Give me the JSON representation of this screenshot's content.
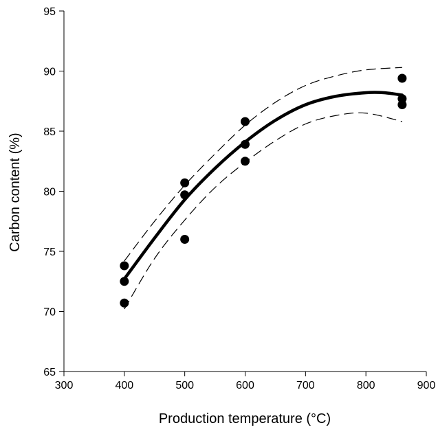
{
  "chart_data": {
    "type": "scatter",
    "title": "",
    "xlabel": "Production temperature (°C)",
    "ylabel": "Carbon content (%)",
    "xlim": [
      300,
      900
    ],
    "ylim": [
      65,
      95
    ],
    "xticks": [
      300,
      400,
      500,
      600,
      700,
      800,
      900
    ],
    "yticks": [
      65,
      70,
      75,
      80,
      85,
      90,
      95
    ],
    "grid": false,
    "legend": "none",
    "colors": {
      "points": "#000000",
      "fit": "#000000",
      "ci": "#000000"
    },
    "series": [
      {
        "kind": "scatter",
        "x": [
          400,
          400,
          400,
          500,
          500,
          500,
          600,
          600,
          600,
          860,
          860,
          860
        ],
        "y": [
          73.8,
          72.5,
          70.7,
          80.7,
          79.7,
          76.0,
          85.8,
          83.9,
          82.5,
          89.4,
          87.7,
          87.2
        ]
      },
      {
        "kind": "fit",
        "style": "solid-thick",
        "x": [
          400,
          450,
          500,
          550,
          600,
          650,
          700,
          750,
          800,
          830,
          860
        ],
        "y": [
          72.7,
          76.1,
          79.3,
          81.9,
          84.1,
          85.9,
          87.2,
          87.9,
          88.2,
          88.2,
          88.0
        ]
      },
      {
        "kind": "ci-upper",
        "style": "dashed",
        "x": [
          400,
          450,
          500,
          550,
          600,
          650,
          700,
          750,
          800,
          860
        ],
        "y": [
          74.2,
          77.5,
          80.5,
          83.1,
          85.5,
          87.4,
          88.8,
          89.6,
          90.1,
          90.3
        ]
      },
      {
        "kind": "ci-lower",
        "style": "dashed",
        "x": [
          400,
          450,
          500,
          550,
          600,
          650,
          700,
          750,
          800,
          860
        ],
        "y": [
          70.2,
          74.4,
          77.6,
          80.3,
          82.4,
          84.2,
          85.6,
          86.3,
          86.5,
          85.8
        ]
      }
    ]
  }
}
